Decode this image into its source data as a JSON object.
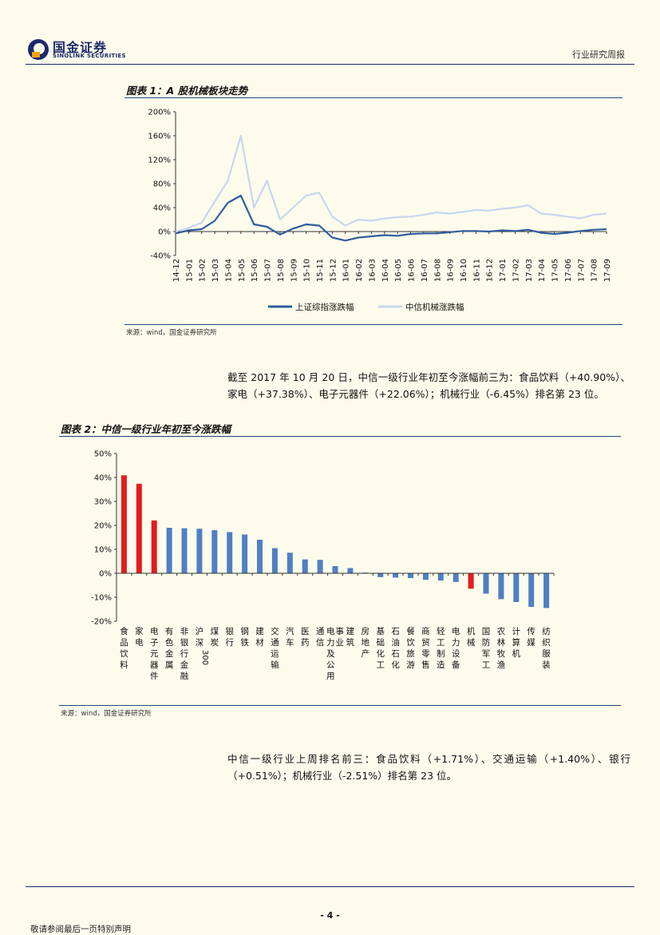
{
  "header": {
    "logo_cn": "国金证券",
    "logo_en": "SINOLINK SECURITIES",
    "report_type": "行业研究周报"
  },
  "figure1": {
    "title": "图表 1：A 股机械板块走势",
    "source": "来源：wind，国金证券研究所",
    "chart_data": {
      "type": "line",
      "yticks": [
        "200%",
        "160%",
        "120%",
        "80%",
        "40%",
        "0%",
        "-40%"
      ],
      "ylim": [
        -40,
        200
      ],
      "x_ticks": [
        "14-12",
        "15-01",
        "15-02",
        "15-03",
        "15-04",
        "15-05",
        "15-06",
        "15-07",
        "15-08",
        "15-09",
        "15-10",
        "15-11",
        "15-12",
        "16-01",
        "16-02",
        "16-03",
        "16-04",
        "16-05",
        "16-06",
        "16-07",
        "16-08",
        "16-09",
        "16-10",
        "16-11",
        "16-12",
        "17-01",
        "17-02",
        "17-03",
        "17-04",
        "17-05",
        "17-06",
        "17-07",
        "17-08",
        "17-09"
      ],
      "series": [
        {
          "name": "上证综指涨跌幅",
          "color": "#2e5d9e",
          "values": [
            -3,
            2,
            4,
            18,
            48,
            60,
            12,
            8,
            -5,
            5,
            12,
            10,
            -10,
            -15,
            -10,
            -8,
            -6,
            -7,
            -4,
            -3,
            -3,
            -1,
            1,
            1,
            0,
            2,
            1,
            3,
            -2,
            -4,
            -2,
            1,
            3,
            4
          ]
        },
        {
          "name": "中信机械涨跌幅",
          "color": "#c6d7ee",
          "values": [
            0,
            6,
            15,
            50,
            85,
            160,
            40,
            85,
            20,
            40,
            60,
            65,
            25,
            10,
            20,
            18,
            22,
            24,
            25,
            28,
            32,
            30,
            33,
            36,
            35,
            38,
            40,
            44,
            30,
            28,
            25,
            22,
            28,
            30
          ]
        }
      ]
    }
  },
  "paragraph1": "截至 2017 年 10 月 20 日，中信一级行业年初至今涨幅前三为：食品饮料（+40.90%）、家电（+37.38%）、电子元器件（+22.06%）；机械行业（-6.45%）排名第 23 位。",
  "figure2": {
    "title": "图表 2：中信一级行业年初至今涨跌幅",
    "source": "来源：wind，国金证券研究所",
    "chart_data": {
      "type": "bar",
      "yticks": [
        "50%",
        "40%",
        "30%",
        "20%",
        "10%",
        "0%",
        "-10%",
        "-20%"
      ],
      "ylim": [
        -20,
        50
      ],
      "categories": [
        "食品饮料",
        "家电",
        "电子元器件",
        "有色金属",
        "非银行金融",
        "沪深300",
        "煤炭",
        "银行",
        "钢铁",
        "建材",
        "交通运输",
        "汽车",
        "医药",
        "通信",
        "电力及公用事业",
        "建筑",
        "房地产",
        "基础化工",
        "石油石化",
        "餐饮旅游",
        "商贸零售",
        "轻工制造",
        "电力设备",
        "机械",
        "国防军工",
        "农林牧渔",
        "计算机",
        "传媒",
        "纺织服装"
      ],
      "values": [
        40.9,
        37.38,
        22.06,
        19.0,
        18.8,
        18.6,
        18.0,
        17.2,
        16.2,
        14.0,
        10.5,
        8.6,
        5.8,
        5.6,
        3.0,
        2.2,
        0.3,
        -1.6,
        -1.8,
        -2.0,
        -2.7,
        -3.0,
        -3.6,
        -6.45,
        -8.5,
        -10.8,
        -12.0,
        -14.0,
        -14.5
      ],
      "highlight_color": "#e41c1c",
      "bar_color": "#4f7fc4"
    }
  },
  "paragraph2": "中信一级行业上周排名前三：食品饮料（+1.71%）、交通运输（+1.40%）、银行（+0.51%）；机械行业（-2.51%）排名第 23 位。",
  "footer": {
    "page": "- 4 -",
    "note": "敬请参阅最后一页特别声明"
  }
}
